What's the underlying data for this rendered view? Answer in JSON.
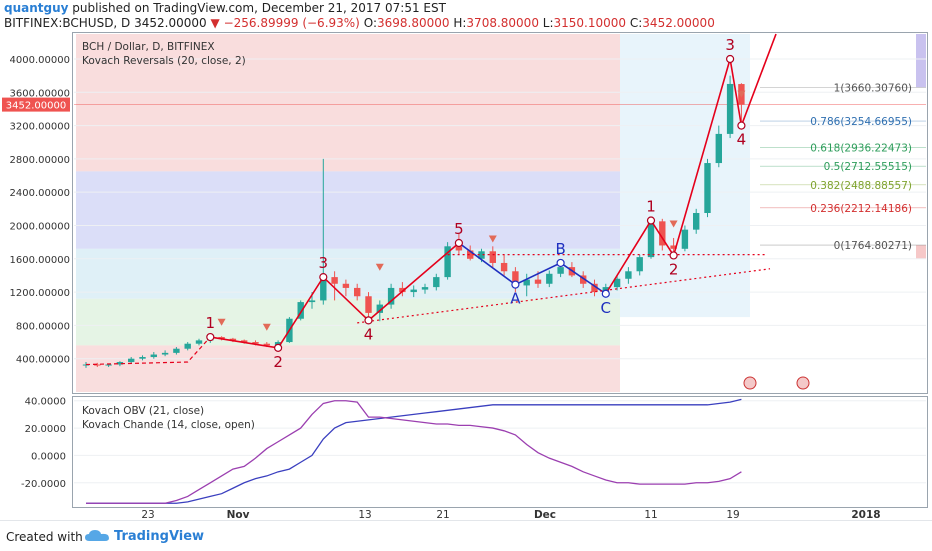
{
  "header": {
    "user": "quantguy",
    "published": "published on TradingView.com, December 21, 2017 07:51 EST",
    "symbol": "BITFINEX:BCHUSD, D",
    "last": "3452.00000",
    "change": "−256.89999 (−6.93%)",
    "o_label": "O:",
    "o": "3698.80000",
    "h_label": "H:",
    "h": "3708.80000",
    "l_label": "L:",
    "l": "3150.10000",
    "c_label": "C:",
    "c": "3452.00000"
  },
  "colors": {
    "up": "#26a69a",
    "down": "#ef5350",
    "wave": "#e5001b",
    "corr": "#1f2fbf",
    "text": "#222222"
  },
  "footer": {
    "created": "Created with",
    "brand": "TradingView"
  },
  "chart_data": [
    {
      "type": "candlestick",
      "legend": [
        "BCH / Dollar, D, BITFINEX",
        "Kovach Reversals (20, close, 2)"
      ],
      "y_ticks": [
        "4000.00000",
        "3600.00000",
        "3200.00000",
        "2800.00000",
        "2400.00000",
        "2000.00000",
        "1600.00000",
        "1200.00000",
        "800.00000",
        "400.00000"
      ],
      "y_range": [
        0,
        4300
      ],
      "last_price_label": "3452.00000",
      "x_ticks": [
        "23",
        "Nov",
        "13",
        "21",
        "Dec",
        "11",
        "19",
        "2018"
      ],
      "candles": [
        {
          "o": 320,
          "h": 360,
          "l": 290,
          "c": 330
        },
        {
          "o": 330,
          "h": 350,
          "l": 300,
          "c": 320
        },
        {
          "o": 320,
          "h": 340,
          "l": 300,
          "c": 330
        },
        {
          "o": 330,
          "h": 370,
          "l": 310,
          "c": 360
        },
        {
          "o": 360,
          "h": 420,
          "l": 340,
          "c": 400
        },
        {
          "o": 400,
          "h": 440,
          "l": 380,
          "c": 420
        },
        {
          "o": 420,
          "h": 480,
          "l": 400,
          "c": 450
        },
        {
          "o": 450,
          "h": 500,
          "l": 430,
          "c": 470
        },
        {
          "o": 470,
          "h": 540,
          "l": 450,
          "c": 520
        },
        {
          "o": 520,
          "h": 600,
          "l": 500,
          "c": 580
        },
        {
          "o": 580,
          "h": 640,
          "l": 560,
          "c": 620
        },
        {
          "o": 620,
          "h": 680,
          "l": 590,
          "c": 660
        },
        {
          "o": 660,
          "h": 670,
          "l": 620,
          "c": 640
        },
        {
          "o": 640,
          "h": 650,
          "l": 600,
          "c": 620
        },
        {
          "o": 620,
          "h": 630,
          "l": 580,
          "c": 600
        },
        {
          "o": 600,
          "h": 620,
          "l": 560,
          "c": 580
        },
        {
          "o": 580,
          "h": 600,
          "l": 540,
          "c": 560
        },
        {
          "o": 560,
          "h": 620,
          "l": 540,
          "c": 600
        },
        {
          "o": 600,
          "h": 900,
          "l": 590,
          "c": 880
        },
        {
          "o": 880,
          "h": 1100,
          "l": 860,
          "c": 1080
        },
        {
          "o": 1080,
          "h": 1200,
          "l": 1000,
          "c": 1100
        },
        {
          "o": 1100,
          "h": 2800,
          "l": 1050,
          "c": 1380
        },
        {
          "o": 1380,
          "h": 1450,
          "l": 1100,
          "c": 1300
        },
        {
          "o": 1300,
          "h": 1350,
          "l": 1150,
          "c": 1250
        },
        {
          "o": 1250,
          "h": 1300,
          "l": 1100,
          "c": 1150
        },
        {
          "o": 1150,
          "h": 1200,
          "l": 900,
          "c": 950
        },
        {
          "o": 950,
          "h": 1100,
          "l": 850,
          "c": 1050
        },
        {
          "o": 1050,
          "h": 1300,
          "l": 1000,
          "c": 1250
        },
        {
          "o": 1250,
          "h": 1320,
          "l": 1150,
          "c": 1200
        },
        {
          "o": 1200,
          "h": 1280,
          "l": 1140,
          "c": 1230
        },
        {
          "o": 1230,
          "h": 1300,
          "l": 1180,
          "c": 1260
        },
        {
          "o": 1260,
          "h": 1420,
          "l": 1220,
          "c": 1380
        },
        {
          "o": 1380,
          "h": 1800,
          "l": 1350,
          "c": 1750
        },
        {
          "o": 1750,
          "h": 1900,
          "l": 1650,
          "c": 1700
        },
        {
          "o": 1700,
          "h": 1760,
          "l": 1580,
          "c": 1600
        },
        {
          "o": 1600,
          "h": 1720,
          "l": 1560,
          "c": 1690
        },
        {
          "o": 1690,
          "h": 1750,
          "l": 1500,
          "c": 1550
        },
        {
          "o": 1550,
          "h": 1650,
          "l": 1400,
          "c": 1450
        },
        {
          "o": 1450,
          "h": 1500,
          "l": 1200,
          "c": 1280
        },
        {
          "o": 1280,
          "h": 1420,
          "l": 1150,
          "c": 1350
        },
        {
          "o": 1350,
          "h": 1450,
          "l": 1250,
          "c": 1300
        },
        {
          "o": 1300,
          "h": 1460,
          "l": 1260,
          "c": 1420
        },
        {
          "o": 1420,
          "h": 1560,
          "l": 1380,
          "c": 1500
        },
        {
          "o": 1500,
          "h": 1560,
          "l": 1380,
          "c": 1400
        },
        {
          "o": 1400,
          "h": 1450,
          "l": 1250,
          "c": 1300
        },
        {
          "o": 1300,
          "h": 1350,
          "l": 1150,
          "c": 1200
        },
        {
          "o": 1200,
          "h": 1300,
          "l": 1150,
          "c": 1260
        },
        {
          "o": 1260,
          "h": 1400,
          "l": 1220,
          "c": 1360
        },
        {
          "o": 1360,
          "h": 1500,
          "l": 1300,
          "c": 1450
        },
        {
          "o": 1450,
          "h": 1650,
          "l": 1400,
          "c": 1620
        },
        {
          "o": 1620,
          "h": 2100,
          "l": 1600,
          "c": 2050
        },
        {
          "o": 2050,
          "h": 2080,
          "l": 1700,
          "c": 1760
        },
        {
          "o": 1760,
          "h": 1850,
          "l": 1640,
          "c": 1720
        },
        {
          "o": 1720,
          "h": 2000,
          "l": 1690,
          "c": 1950
        },
        {
          "o": 1950,
          "h": 2200,
          "l": 1900,
          "c": 2150
        },
        {
          "o": 2150,
          "h": 2800,
          "l": 2100,
          "c": 2750
        },
        {
          "o": 2750,
          "h": 3200,
          "l": 2700,
          "c": 3100
        },
        {
          "o": 3100,
          "h": 3800,
          "l": 3050,
          "c": 3700
        },
        {
          "o": 3698.8,
          "h": 3708.8,
          "l": 3150.1,
          "c": 3452
        }
      ],
      "fib_levels": [
        {
          "ratio": "1",
          "price": 3660.3076,
          "label": "1(3660.30760)",
          "color": "#555555"
        },
        {
          "ratio": "0.786",
          "price": 3254.66955,
          "label": "0.786(3254.66955)",
          "color": "#2f6fb0"
        },
        {
          "ratio": "0.618",
          "price": 2936.22473,
          "label": "0.618(2936.22473)",
          "color": "#2e9d5b"
        },
        {
          "ratio": "0.5",
          "price": 2712.55515,
          "label": "0.5(2712.55515)",
          "color": "#2e9d5b"
        },
        {
          "ratio": "0.382",
          "price": 2488.88557,
          "label": "0.382(2488.88557)",
          "color": "#7fa32f"
        },
        {
          "ratio": "0.236",
          "price": 2212.14186,
          "label": "0.236(2212.14186)",
          "color": "#d32f2f"
        },
        {
          "ratio": "0",
          "price": 1764.80271,
          "label": "0(1764.80271)",
          "color": "#555555"
        }
      ],
      "wave_labels": [
        {
          "text": "1",
          "i": 11,
          "p": 660,
          "color": "#b00020"
        },
        {
          "text": "2",
          "i": 17,
          "p": 530,
          "color": "#b00020"
        },
        {
          "text": "3",
          "i": 21,
          "p": 1380,
          "color": "#b00020"
        },
        {
          "text": "4",
          "i": 25,
          "p": 860,
          "color": "#b00020"
        },
        {
          "text": "5",
          "i": 33,
          "p": 1790,
          "color": "#b00020"
        },
        {
          "text": "A",
          "i": 38,
          "p": 1290,
          "color": "#1f2fbf"
        },
        {
          "text": "B",
          "i": 42,
          "p": 1550,
          "color": "#1f2fbf"
        },
        {
          "text": "C",
          "i": 46,
          "p": 1180,
          "color": "#1f2fbf"
        },
        {
          "text": "1",
          "i": 50,
          "p": 2060,
          "color": "#b00020"
        },
        {
          "text": "2",
          "i": 52,
          "p": 1640,
          "color": "#b00020"
        },
        {
          "text": "3",
          "i": 57,
          "p": 4000,
          "color": "#b00020"
        },
        {
          "text": "4",
          "i": 58,
          "p": 3200,
          "color": "#b00020"
        }
      ]
    },
    {
      "type": "line",
      "legend": [
        "Kovach OBV (21, close)",
        "Kovach Chande (14, close, open)"
      ],
      "y_ticks": [
        "40.0000",
        "20.0000",
        "0.0000",
        "-20.0000"
      ],
      "y_range": [
        -37,
        42
      ],
      "series": [
        {
          "name": "Kovach OBV (21, close)",
          "color": "#3a3fbf",
          "values": [
            -35,
            -35,
            -35,
            -35,
            -35,
            -35,
            -35,
            -35,
            -35,
            -34,
            -32,
            -30,
            -28,
            -24,
            -20,
            -17,
            -15,
            -12,
            -10,
            -5,
            0,
            12,
            20,
            24,
            25,
            26,
            27,
            28,
            29,
            30,
            31,
            32,
            33,
            34,
            35,
            36,
            37,
            37,
            37,
            37,
            37,
            37,
            37,
            37,
            37,
            37,
            37,
            37,
            37,
            37,
            37,
            37,
            37,
            37,
            37,
            37,
            38,
            39,
            41
          ]
        },
        {
          "name": "Kovach Chande (14, close, open)",
          "color": "#9b3fb0",
          "values": [
            -35,
            -35,
            -35,
            -35,
            -35,
            -35,
            -35,
            -35,
            -33,
            -30,
            -25,
            -20,
            -15,
            -10,
            -8,
            -2,
            5,
            10,
            15,
            20,
            30,
            38,
            40,
            40,
            39,
            28,
            28,
            27,
            26,
            25,
            24,
            23,
            23,
            22,
            22,
            21,
            20,
            18,
            15,
            8,
            2,
            -2,
            -5,
            -8,
            -12,
            -15,
            -18,
            -20,
            -20,
            -21,
            -21,
            -21,
            -21,
            -21,
            -20,
            -20,
            -19,
            -17,
            -12
          ]
        }
      ]
    }
  ]
}
